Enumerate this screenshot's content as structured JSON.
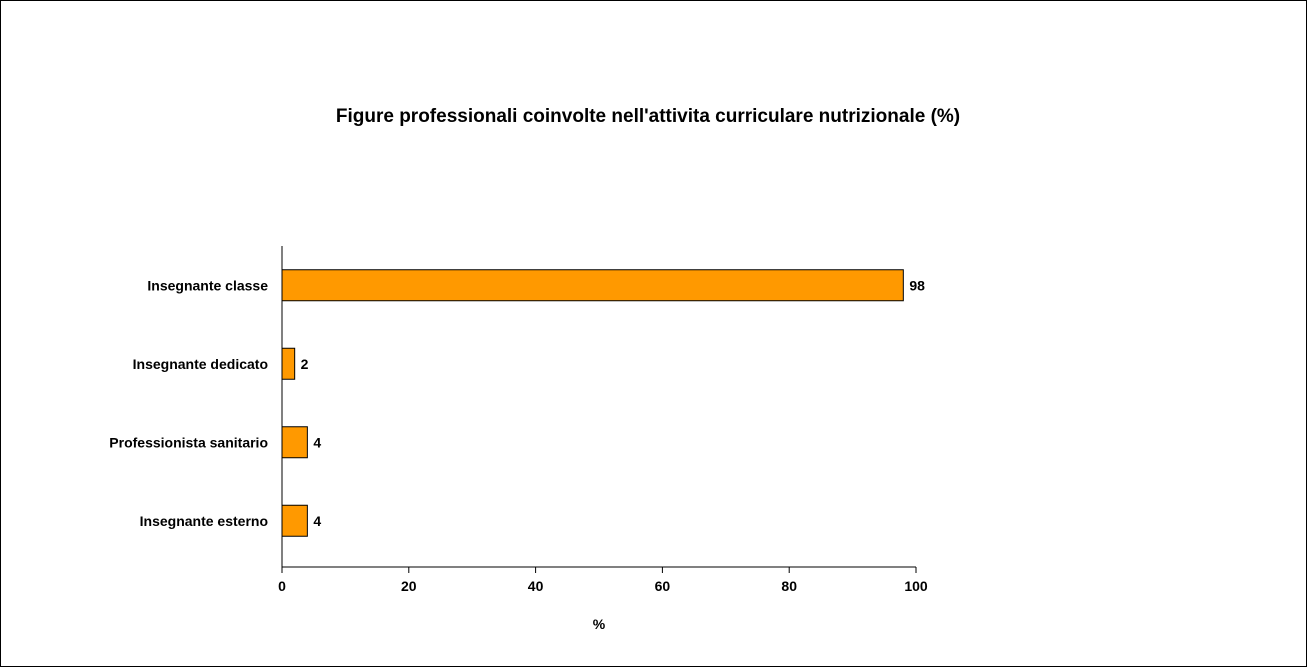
{
  "chart_data": {
    "type": "bar",
    "orientation": "horizontal",
    "title": "Figure professionali coinvolte nell'attivita curriculare nutrizionale (%)",
    "xlabel": "%",
    "ylabel": "",
    "categories": [
      "Insegnante classe",
      "Insegnante dedicato",
      "Professionista sanitario",
      "Insegnante esterno"
    ],
    "values": [
      98,
      2,
      4,
      4
    ],
    "data_labels": [
      "98",
      "2",
      "4",
      "4"
    ],
    "xlim": [
      0,
      100
    ],
    "x_ticks": [
      "0",
      "20",
      "40",
      "60",
      "80",
      "100"
    ],
    "grid": false,
    "legend": "none",
    "bar_color": "#FF9900",
    "bar_stroke": "#000000"
  }
}
